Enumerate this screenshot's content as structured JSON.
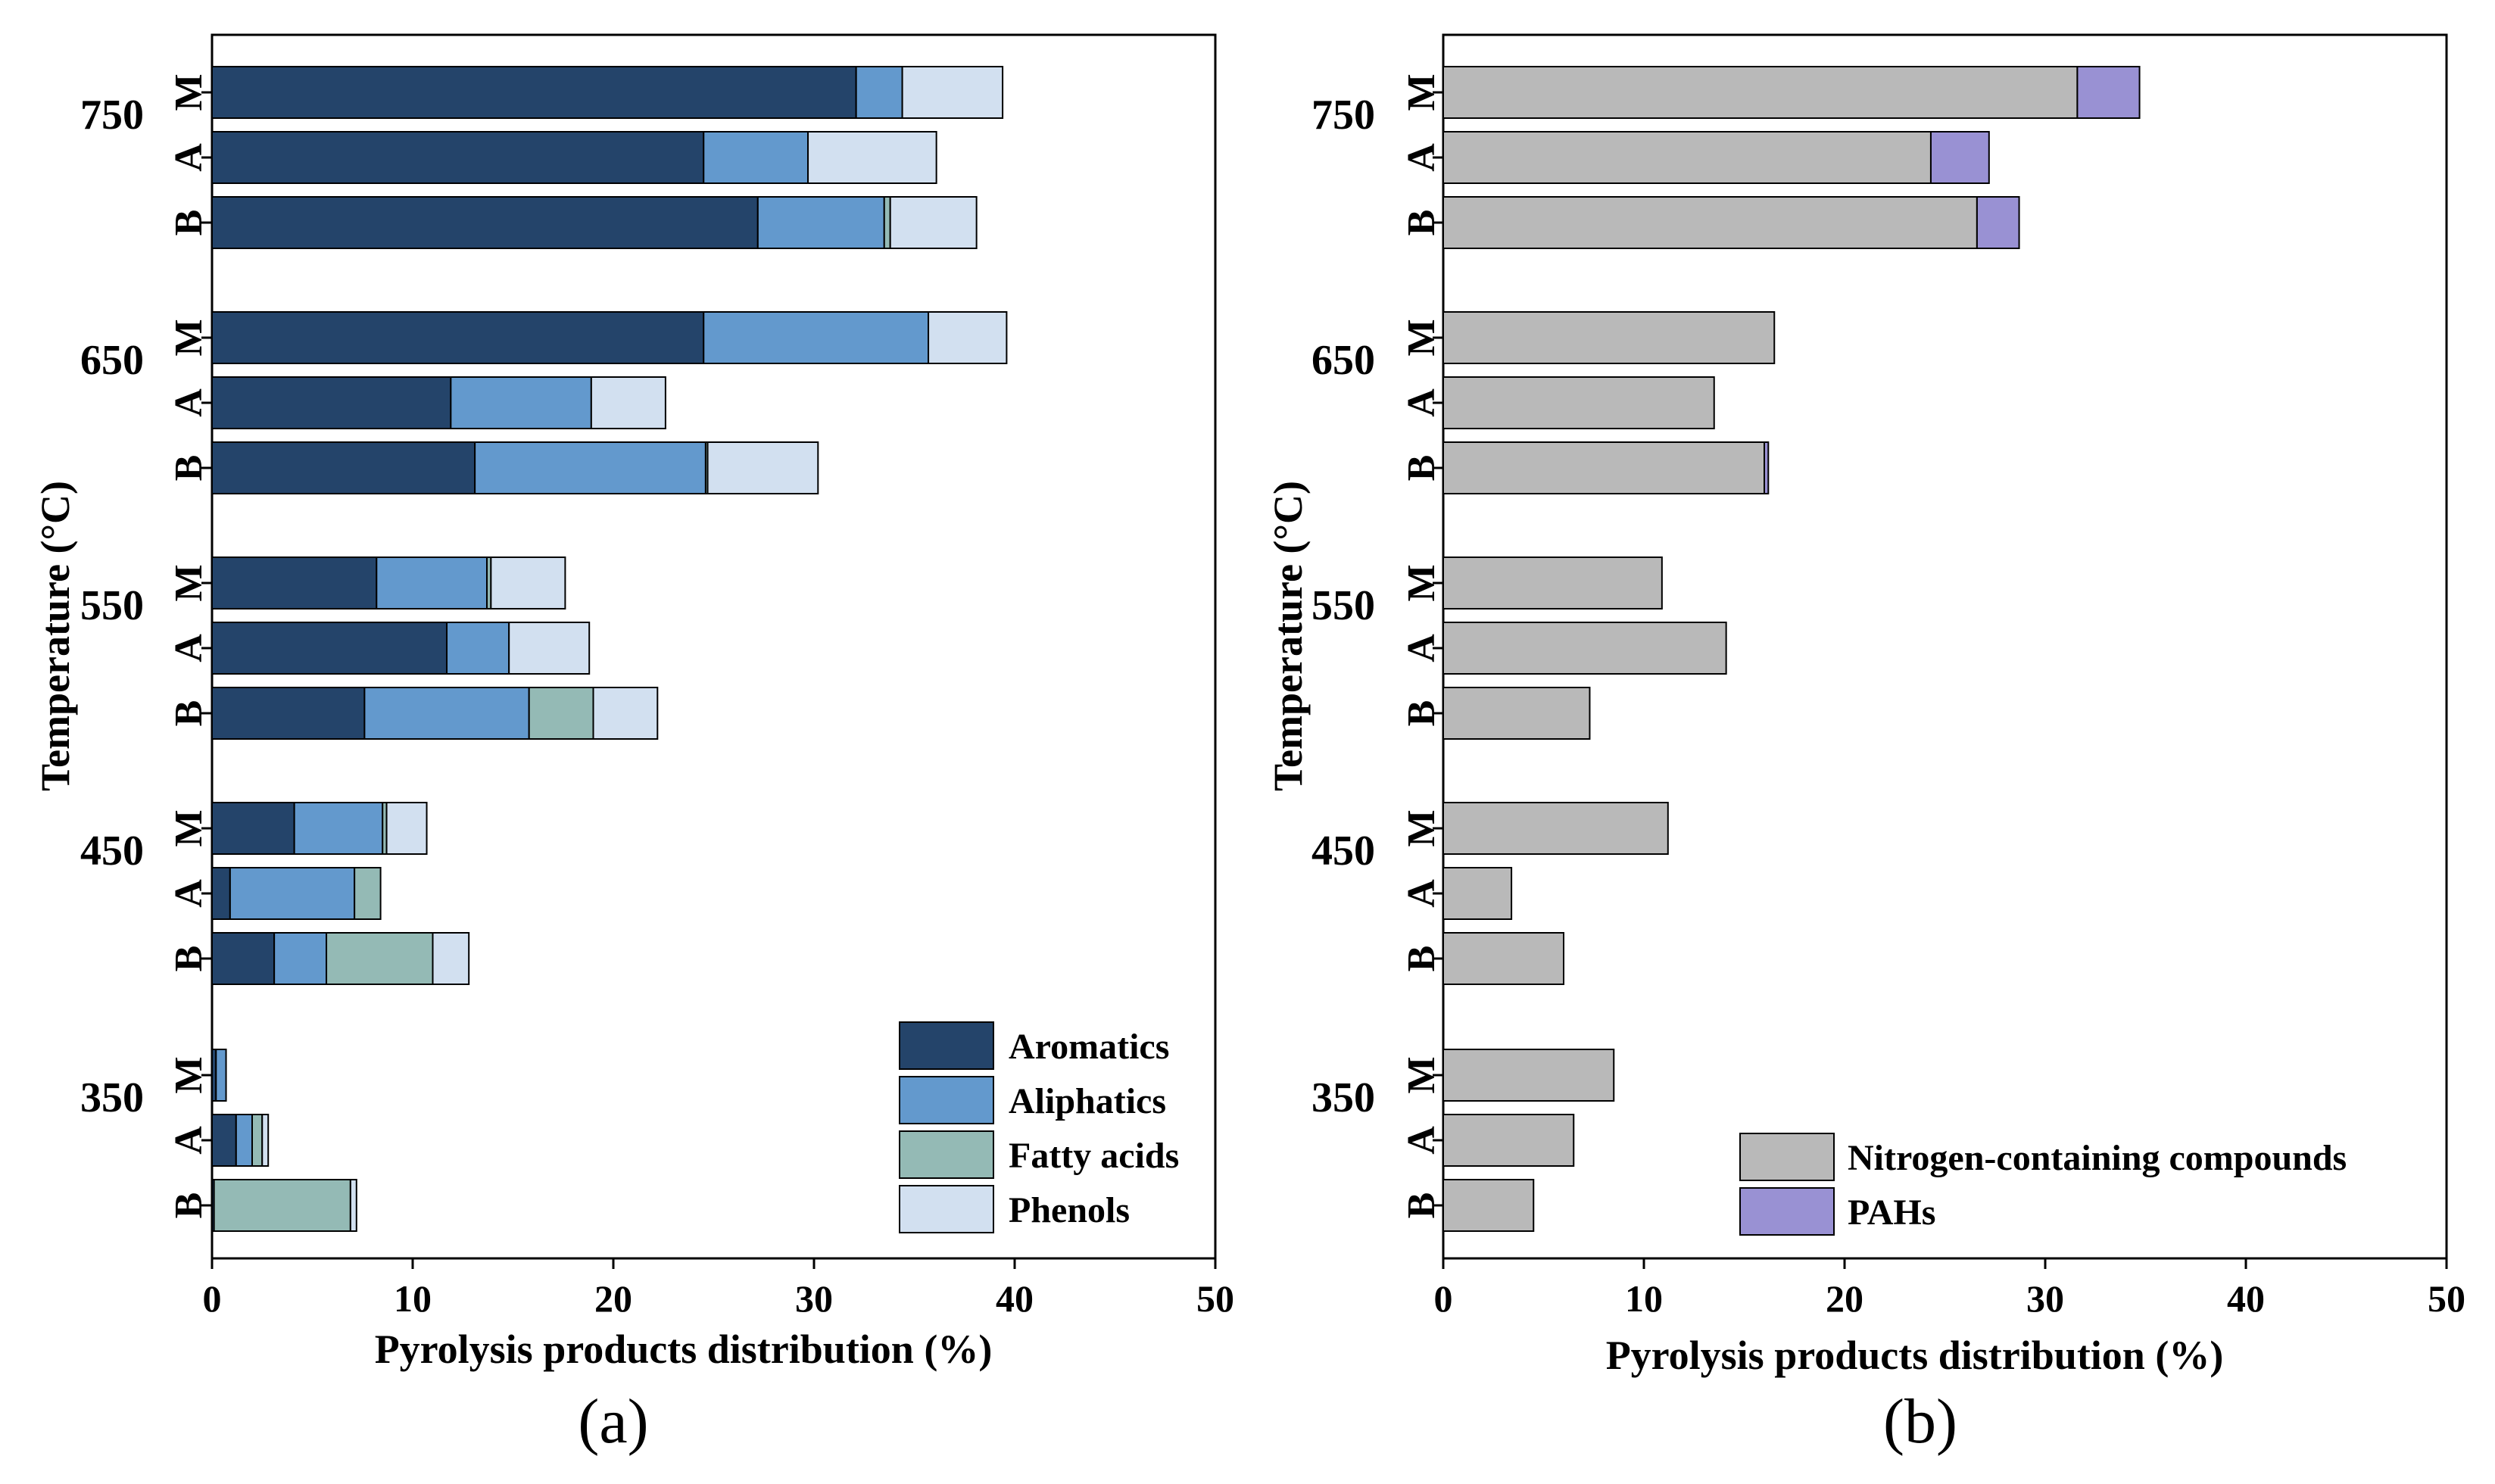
{
  "panels": [
    {
      "caption": "(a)",
      "colors": {
        "Aromatics": "#24446a",
        "Aliphatics": "#6399cd",
        "Fatty acids": "#94bab5",
        "Phenols": "#d2e0f0"
      },
      "chart_data": {
        "type": "bar",
        "orientation": "horizontal",
        "stacked": true,
        "xlabel": "Pyrolysis products distribution  (%)",
        "ylabel": "Temperature (°C)",
        "xlim": [
          0,
          50
        ],
        "xticks": [
          0,
          10,
          20,
          30,
          40,
          50
        ],
        "legend_position": "bottom-right",
        "temperatures": [
          "750",
          "650",
          "550",
          "450",
          "350"
        ],
        "feedstocks": [
          "M",
          "A",
          "B"
        ],
        "series": [
          {
            "name": "Aromatics",
            "values": [
              32.1,
              24.5,
              27.2,
              24.5,
              11.9,
              13.1,
              8.2,
              11.7,
              7.6,
              4.1,
              0.9,
              3.1,
              0.2,
              1.2,
              0.1
            ]
          },
          {
            "name": "Aliphatics",
            "values": [
              2.3,
              5.2,
              6.3,
              11.2,
              7.0,
              11.5,
              5.5,
              3.1,
              8.2,
              4.4,
              6.2,
              2.6,
              0.5,
              0.8,
              0.0
            ]
          },
          {
            "name": "Fatty acids",
            "values": [
              0.0,
              0.0,
              0.3,
              0.0,
              0.0,
              0.1,
              0.2,
              0.0,
              3.2,
              0.2,
              1.3,
              5.3,
              0.0,
              0.5,
              6.8
            ]
          },
          {
            "name": "Phenols",
            "values": [
              5.0,
              6.4,
              4.3,
              3.9,
              3.7,
              5.5,
              3.7,
              4.0,
              3.2,
              2.0,
              0.0,
              1.8,
              0.0,
              0.3,
              0.3
            ]
          }
        ]
      }
    },
    {
      "caption": "(b)",
      "colors": {
        "Nitrogen-containing compounds": "#b9b9b9",
        "PAHs": "#9991d3"
      },
      "chart_data": {
        "type": "bar",
        "orientation": "horizontal",
        "stacked": true,
        "xlabel": "Pyrolysis products distribution (%)",
        "ylabel": "Temperature (°C)",
        "xlim": [
          0,
          50
        ],
        "xticks": [
          0,
          10,
          20,
          30,
          40,
          50
        ],
        "legend_position": "bottom-right",
        "temperatures": [
          "750",
          "650",
          "550",
          "450",
          "350"
        ],
        "feedstocks": [
          "M",
          "A",
          "B"
        ],
        "series": [
          {
            "name": "Nitrogen-containing compounds",
            "values": [
              31.6,
              24.3,
              26.6,
              16.5,
              13.5,
              16.0,
              10.9,
              14.1,
              7.3,
              11.2,
              3.4,
              6.0,
              8.5,
              6.5,
              4.5
            ]
          },
          {
            "name": "PAHs",
            "values": [
              3.1,
              2.9,
              2.1,
              0.0,
              0.0,
              0.2,
              0.0,
              0.0,
              0.0,
              0.0,
              0.0,
              0.0,
              0.0,
              0.0,
              0.0
            ]
          }
        ]
      }
    }
  ]
}
